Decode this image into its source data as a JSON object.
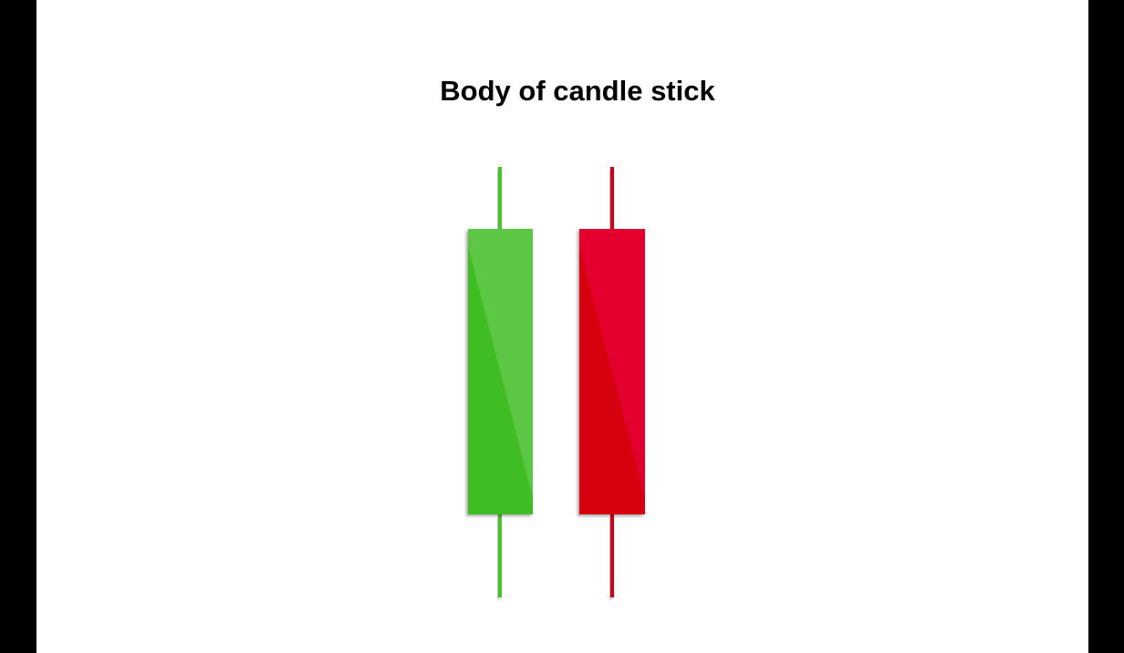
{
  "title": "Body of candle stick",
  "candles": [
    {
      "name": "bullish-candle",
      "body_light": "#5cc644",
      "body_dark": "#3fbd22",
      "wick": "#4cc22e"
    },
    {
      "name": "bearish-candle",
      "body_light": "#e4002e",
      "body_dark": "#d6000f",
      "wick": "#d0001a"
    }
  ]
}
